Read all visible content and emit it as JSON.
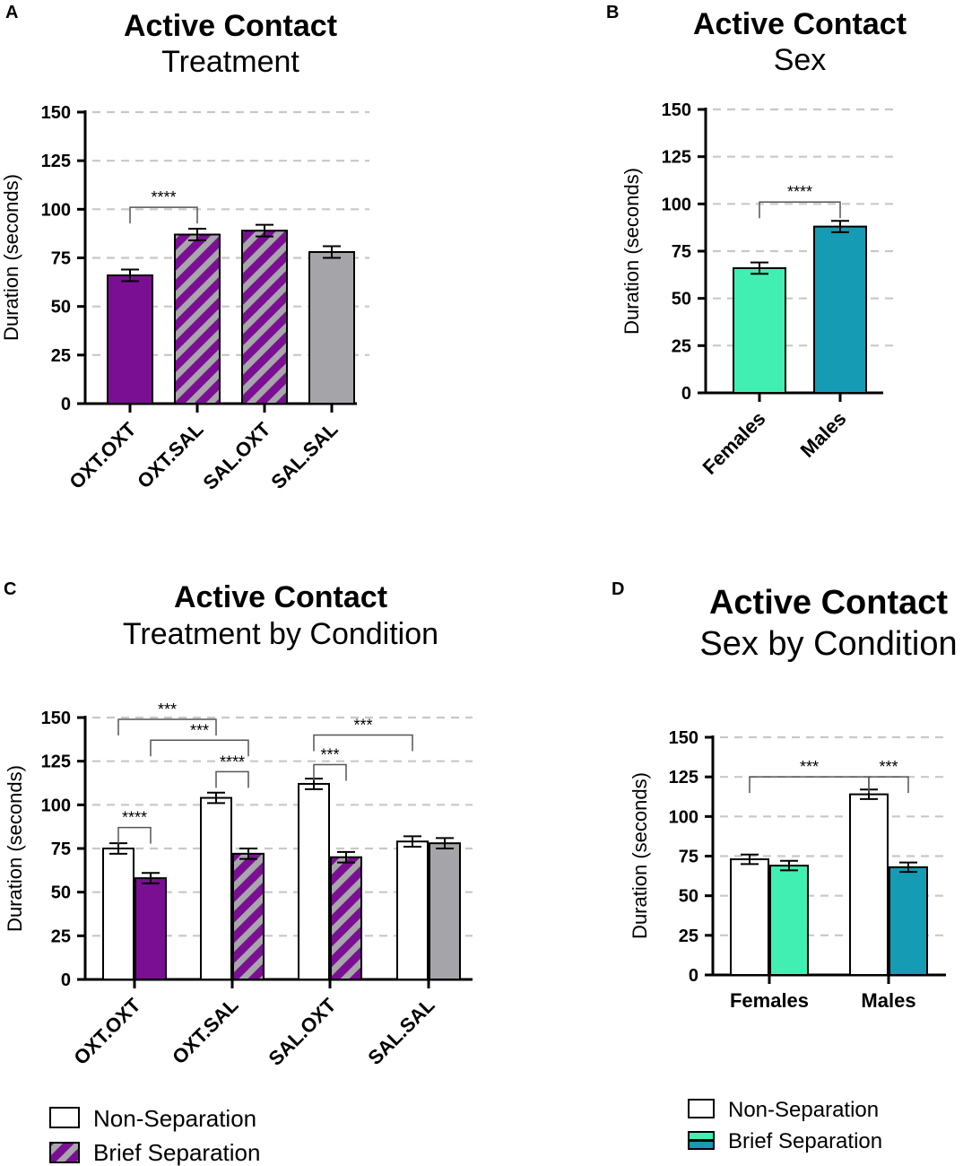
{
  "colors": {
    "oxt_purple": "#7b0f93",
    "stripe_gray": "#a7a6ab",
    "sal_gray": "#a5a4a8",
    "female_teal": "#42efb3",
    "male_teal": "#159bb3",
    "grid": "#c8c8c8"
  },
  "chart_data": [
    {
      "panel": "A",
      "type": "bar",
      "title": "Active Contact",
      "subtitle": "Treatment",
      "ylabel": "Duration (seconds)",
      "xlabel": "",
      "ylim": [
        0,
        150
      ],
      "yticks": [
        0,
        25,
        50,
        75,
        100,
        125,
        150
      ],
      "categories": [
        "OXT.OXT",
        "OXT.SAL",
        "SAL.OXT",
        "SAL.SAL"
      ],
      "values": [
        66,
        87,
        89,
        78
      ],
      "errors": [
        3,
        3,
        3,
        3
      ],
      "fills": [
        "solid-purple",
        "striped-purple",
        "striped-purple",
        "solid-gray"
      ],
      "significance": [
        {
          "from": 0,
          "to": 1,
          "label": "****",
          "y": 101
        }
      ]
    },
    {
      "panel": "B",
      "type": "bar",
      "title": "Active Contact",
      "subtitle": "Sex",
      "ylabel": "Duration (seconds)",
      "xlabel": "",
      "ylim": [
        0,
        150
      ],
      "yticks": [
        0,
        25,
        50,
        75,
        100,
        125,
        150
      ],
      "categories": [
        "Females",
        "Males"
      ],
      "values": [
        66,
        88
      ],
      "errors": [
        3,
        3
      ],
      "fills": [
        "solid-female",
        "solid-male"
      ],
      "significance": [
        {
          "from": 0,
          "to": 1,
          "label": "****",
          "y": 101
        }
      ]
    },
    {
      "panel": "C",
      "type": "bar",
      "title": "Active Contact",
      "subtitle": "Treatment by Condition",
      "ylabel": "Duration (seconds)",
      "xlabel": "",
      "ylim": [
        0,
        150
      ],
      "yticks": [
        0,
        25,
        50,
        75,
        100,
        125,
        150
      ],
      "categories": [
        "OXT.OXT",
        "OXT.SAL",
        "SAL.OXT",
        "SAL.SAL"
      ],
      "series": [
        {
          "name": "Non-Separation",
          "values": [
            75,
            104,
            112,
            79
          ],
          "errors": [
            3,
            3,
            3,
            3
          ],
          "fills": [
            "white",
            "white",
            "white",
            "white"
          ]
        },
        {
          "name": "Brief Separation",
          "values": [
            58,
            72,
            70,
            78
          ],
          "errors": [
            3,
            3,
            3,
            3
          ],
          "fills": [
            "solid-purple",
            "striped-purple",
            "striped-purple",
            "solid-gray"
          ]
        }
      ],
      "significance": [
        {
          "from": [
            0,
            0
          ],
          "to": [
            1,
            0
          ],
          "label": "***",
          "y": 149
        },
        {
          "from": [
            0,
            1
          ],
          "to": [
            1,
            1
          ],
          "label": "***",
          "y": 137
        },
        {
          "from": [
            1,
            0
          ],
          "to": [
            1,
            1
          ],
          "label": "****",
          "y": 119
        },
        {
          "from": [
            0,
            0
          ],
          "to": [
            0,
            1
          ],
          "label": "****",
          "y": 87
        },
        {
          "from": [
            2,
            0
          ],
          "to": [
            3,
            0
          ],
          "label": "***",
          "y": 140
        },
        {
          "from": [
            2,
            0
          ],
          "to": [
            2,
            1
          ],
          "label": "***",
          "y": 123
        }
      ],
      "legend": [
        "Non-Separation",
        "Brief Separation"
      ]
    },
    {
      "panel": "D",
      "type": "bar",
      "title": "Active Contact",
      "subtitle": "Sex by Condition",
      "ylabel": "Duration (seconds)",
      "xlabel": "",
      "ylim": [
        0,
        150
      ],
      "yticks": [
        0,
        25,
        50,
        75,
        100,
        125,
        150
      ],
      "categories": [
        "Females",
        "Males"
      ],
      "series": [
        {
          "name": "Non-Separation",
          "values": [
            73,
            114
          ],
          "errors": [
            3,
            3
          ],
          "fills": [
            "white",
            "white"
          ]
        },
        {
          "name": "Brief Separation",
          "values": [
            69,
            68
          ],
          "errors": [
            3,
            3
          ],
          "fills": [
            "solid-female",
            "solid-male"
          ]
        }
      ],
      "significance": [
        {
          "from": [
            0,
            0
          ],
          "to": [
            1,
            0
          ],
          "label": "***",
          "y": 125
        },
        {
          "from": [
            1,
            0
          ],
          "to": [
            1,
            1
          ],
          "label": "***",
          "y": 125
        }
      ],
      "legend": [
        "Non-Separation",
        "Brief Separation"
      ]
    }
  ]
}
